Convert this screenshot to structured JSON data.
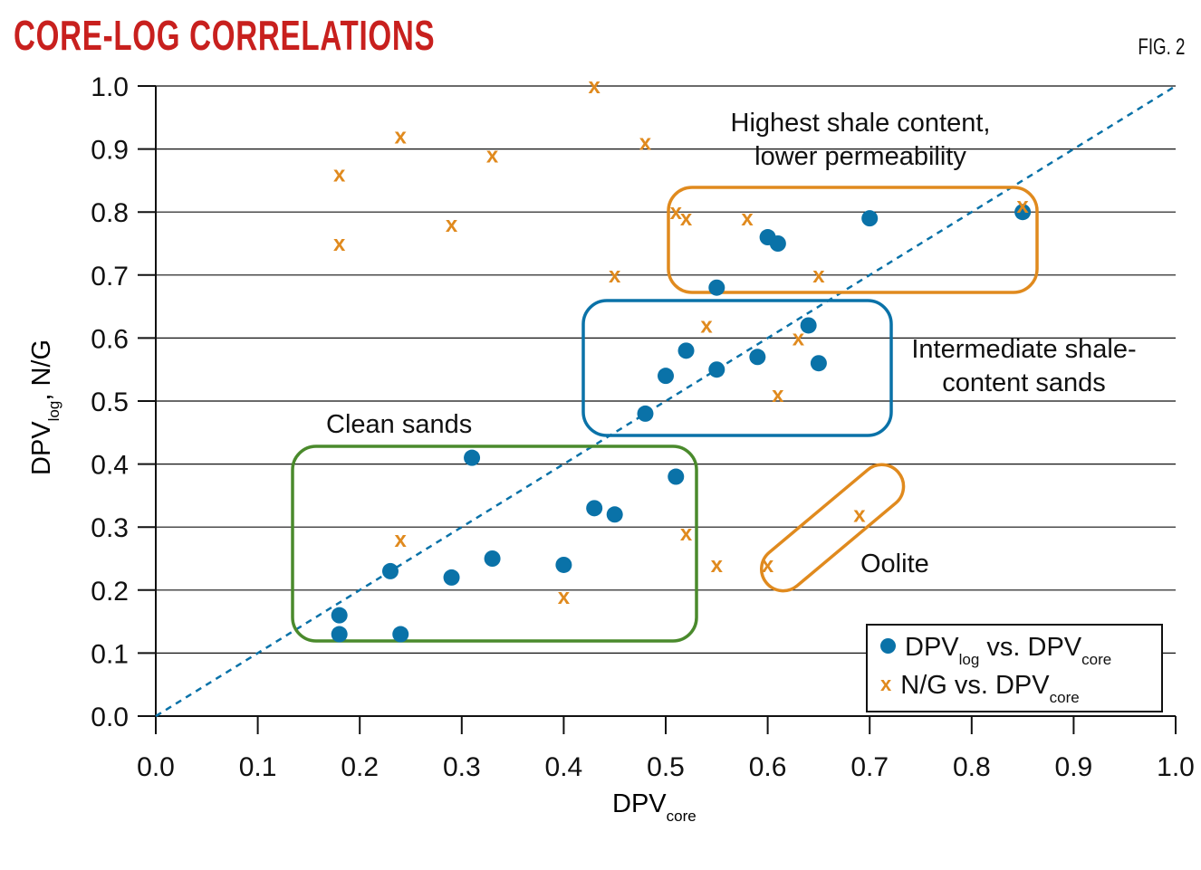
{
  "header": {
    "title": "CORE-LOG CORRELATIONS",
    "figure_label": "FIG. 2"
  },
  "chart_data": {
    "type": "scatter",
    "xlabel": {
      "main": "DPV",
      "sub": "core"
    },
    "ylabel": {
      "main": "DPV",
      "sub": "log",
      "suffix": ", N/G"
    },
    "xlim": [
      0,
      1
    ],
    "ylim": [
      0,
      1
    ],
    "xticks": [
      "0.0",
      "0.1",
      "0.2",
      "0.3",
      "0.4",
      "0.5",
      "0.6",
      "0.7",
      "0.8",
      "0.9",
      "1.0"
    ],
    "yticks": [
      "0.0",
      "0.1",
      "0.2",
      "0.3",
      "0.4",
      "0.5",
      "0.6",
      "0.7",
      "0.8",
      "0.9",
      "1.0"
    ],
    "grid": "horizontal",
    "reference_line": {
      "style": "dashed",
      "from": [
        0,
        0
      ],
      "to": [
        1,
        1
      ],
      "color": "#0a72a8"
    },
    "legend_position": "bottom-right",
    "series": [
      {
        "marker": "dot",
        "color": "#0a72a8",
        "legend": {
          "main": "DPV",
          "sub1": "log",
          "mid": " vs. DPV",
          "sub2": "core"
        },
        "points": [
          [
            0.18,
            0.13
          ],
          [
            0.18,
            0.16
          ],
          [
            0.24,
            0.13
          ],
          [
            0.23,
            0.23
          ],
          [
            0.29,
            0.22
          ],
          [
            0.31,
            0.41
          ],
          [
            0.33,
            0.25
          ],
          [
            0.4,
            0.24
          ],
          [
            0.43,
            0.33
          ],
          [
            0.45,
            0.32
          ],
          [
            0.51,
            0.38
          ],
          [
            0.48,
            0.48
          ],
          [
            0.5,
            0.54
          ],
          [
            0.52,
            0.58
          ],
          [
            0.55,
            0.55
          ],
          [
            0.59,
            0.57
          ],
          [
            0.64,
            0.62
          ],
          [
            0.65,
            0.56
          ],
          [
            0.55,
            0.68
          ],
          [
            0.6,
            0.76
          ],
          [
            0.61,
            0.75
          ],
          [
            0.7,
            0.79
          ],
          [
            0.85,
            0.8
          ]
        ]
      },
      {
        "marker": "x",
        "color": "#e08a1e",
        "legend": {
          "main": "N/G vs. DPV",
          "sub2": "core"
        },
        "points": [
          [
            0.43,
            1.0
          ],
          [
            0.24,
            0.92
          ],
          [
            0.33,
            0.89
          ],
          [
            0.48,
            0.91
          ],
          [
            0.18,
            0.86
          ],
          [
            0.29,
            0.78
          ],
          [
            0.18,
            0.75
          ],
          [
            0.51,
            0.8
          ],
          [
            0.52,
            0.79
          ],
          [
            0.58,
            0.79
          ],
          [
            0.85,
            0.81
          ],
          [
            0.45,
            0.7
          ],
          [
            0.65,
            0.7
          ],
          [
            0.54,
            0.62
          ],
          [
            0.63,
            0.6
          ],
          [
            0.61,
            0.51
          ],
          [
            0.24,
            0.28
          ],
          [
            0.52,
            0.29
          ],
          [
            0.4,
            0.19
          ],
          [
            0.55,
            0.24
          ],
          [
            0.6,
            0.24
          ],
          [
            0.69,
            0.32
          ]
        ]
      }
    ],
    "annotations": [
      {
        "text": [
          "Highest shale content,",
          "lower permeability"
        ],
        "color": "#e08a1e"
      },
      {
        "text": [
          "Intermediate shale-",
          "content sands"
        ],
        "color": "#0a72a8"
      },
      {
        "text": [
          "Clean sands"
        ],
        "color": "#4a8a2c"
      },
      {
        "text": [
          "Oolite"
        ],
        "color": "#e08a1e"
      }
    ]
  }
}
